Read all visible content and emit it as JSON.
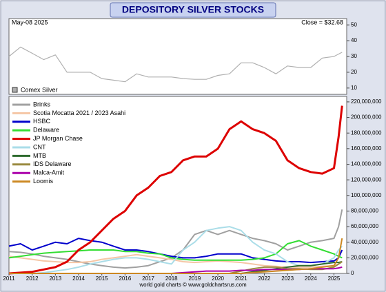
{
  "chart_data": [
    {
      "type": "line",
      "title": "DEPOSITORY SILVER STOCKS",
      "date_label": "May-08 2025",
      "close_label": "Close = $32.68",
      "x": [
        2011,
        2011.5,
        2012,
        2012.5,
        2013,
        2013.5,
        2014,
        2014.5,
        2015,
        2015.5,
        2016,
        2016.5,
        2017,
        2017.5,
        2018,
        2018.5,
        2019,
        2019.5,
        2020,
        2020.5,
        2021,
        2021.5,
        2022,
        2022.5,
        2023,
        2023.5,
        2024,
        2024.5,
        2025,
        2025.35
      ],
      "xlim": [
        2011,
        2025.55
      ],
      "ylim": [
        6,
        54
      ],
      "yticks": [
        10,
        20,
        30,
        40,
        50
      ],
      "series": [
        {
          "name": "Comex Silver",
          "color": "#b0b0b0",
          "values": [
            30,
            36,
            32,
            28,
            31,
            20,
            20,
            20,
            16,
            15,
            14,
            19,
            17,
            17,
            17,
            16,
            15.5,
            15.5,
            18,
            19,
            26,
            26,
            23,
            19,
            24,
            23,
            23,
            29,
            30,
            32.68
          ]
        }
      ]
    },
    {
      "type": "line",
      "credit": "world gold charts © www.goldchartsrus.com",
      "x": [
        2011,
        2011.5,
        2012,
        2012.5,
        2013,
        2013.5,
        2014,
        2014.5,
        2015,
        2015.5,
        2016,
        2016.5,
        2017,
        2017.5,
        2018,
        2018.5,
        2019,
        2019.5,
        2020,
        2020.5,
        2021,
        2021.5,
        2022,
        2022.5,
        2023,
        2023.5,
        2024,
        2024.5,
        2025,
        2025.2,
        2025.35
      ],
      "xlim": [
        2011,
        2025.55
      ],
      "xticks": [
        2011,
        2012,
        2013,
        2014,
        2015,
        2016,
        2017,
        2018,
        2019,
        2020,
        2021,
        2022,
        2023,
        2024,
        2025
      ],
      "ylim": [
        0,
        227000000
      ],
      "yticks": [
        0,
        {
          "value": 20000000,
          "label": "20,000,000"
        },
        {
          "value": 40000000,
          "label": "40,000,000"
        },
        {
          "value": 60000000,
          "label": "60,000,000"
        },
        {
          "value": 80000000,
          "label": "80,000,000"
        },
        {
          "value": 100000000,
          "label": "100,000,000"
        },
        {
          "value": 120000000,
          "label": "120,000,000"
        },
        {
          "value": 140000000,
          "label": "140,000,000"
        },
        {
          "value": 160000000,
          "label": "160,000,000"
        },
        {
          "value": 180000000,
          "label": "180,000,000"
        },
        {
          "value": 200000000,
          "label": "200,000,000"
        },
        {
          "value": 220000000,
          "label": "220,000,000"
        }
      ],
      "series": [
        {
          "name": "Brinks",
          "color": "#a0a0a0",
          "values": [
            28000000.0,
            27000000.0,
            25000000.0,
            22000000.0,
            20000000.0,
            18000000.0,
            15000000.0,
            12000000.0,
            10000000.0,
            8000000.0,
            7000000.0,
            8000000.0,
            10000000.0,
            15000000.0,
            20000000.0,
            30000000.0,
            50000000.0,
            55000000.0,
            50000000.0,
            55000000.0,
            50000000.0,
            45000000.0,
            42000000.0,
            38000000.0,
            30000000.0,
            35000000.0,
            40000000.0,
            42000000.0,
            45000000.0,
            60000000.0,
            82000000.0
          ]
        },
        {
          "name": "Scotia Mocatta 2021 / 2023 Asahi",
          "color": "#f5c6a5",
          "values": [
            22000000.0,
            20000000.0,
            18000000.0,
            16000000.0,
            15000000.0,
            14000000.0,
            14000000.0,
            15000000.0,
            18000000.0,
            20000000.0,
            22000000.0,
            24000000.0,
            22000000.0,
            20000000.0,
            18000000.0,
            15000000.0,
            14000000.0,
            15000000.0,
            16000000.0,
            15000000.0,
            14000000.0,
            12000000.0,
            10000000.0,
            9000000.0,
            8000000.0,
            8000000.0,
            8000000.0,
            9000000.0,
            10000000.0,
            12000000.0,
            15000000.0
          ]
        },
        {
          "name": "HSBC",
          "color": "#0000cc",
          "values": [
            35000000.0,
            38000000.0,
            30000000.0,
            35000000.0,
            40000000.0,
            38000000.0,
            45000000.0,
            42000000.0,
            40000000.0,
            35000000.0,
            30000000.0,
            30000000.0,
            28000000.0,
            25000000.0,
            22000000.0,
            20000000.0,
            20000000.0,
            22000000.0,
            25000000.0,
            25000000.0,
            25000000.0,
            20000000.0,
            18000000.0,
            16000000.0,
            15000000.0,
            15000000.0,
            14000000.0,
            15000000.0,
            16000000.0,
            20000000.0,
            30000000.0
          ]
        },
        {
          "name": "Delaware",
          "color": "#33dd33",
          "values": [
            20000000.0,
            22000000.0,
            24000000.0,
            26000000.0,
            27000000.0,
            28000000.0,
            29000000.0,
            30000000.0,
            30000000.0,
            30000000.0,
            28000000.0,
            28000000.0,
            26000000.0,
            25000000.0,
            20000000.0,
            18000000.0,
            17000000.0,
            17000000.0,
            17000000.0,
            17000000.0,
            17000000.0,
            18000000.0,
            20000000.0,
            25000000.0,
            38000000.0,
            42000000.0,
            35000000.0,
            30000000.0,
            25000000.0,
            22000000.0,
            20000000.0
          ]
        },
        {
          "name": "JP Morgan Chase",
          "color": "#dd0000",
          "values": [
            0,
            1000000.0,
            2000000.0,
            5000000.0,
            8000000.0,
            15000000.0,
            30000000.0,
            40000000.0,
            55000000.0,
            70000000.0,
            80000000.0,
            100000000.0,
            110000000.0,
            125000000.0,
            130000000.0,
            145000000.0,
            150000000.0,
            150000000.0,
            160000000.0,
            185000000.0,
            195000000.0,
            185000000.0,
            180000000.0,
            170000000.0,
            145000000.0,
            135000000.0,
            130000000.0,
            128000000.0,
            135000000.0,
            175000000.0,
            215000000.0
          ]
        },
        {
          "name": "CNT",
          "color": "#aadde8",
          "values": [
            0,
            0,
            0,
            1000000.0,
            3000000.0,
            5000000.0,
            8000000.0,
            12000000.0,
            15000000.0,
            18000000.0,
            20000000.0,
            20000000.0,
            18000000.0,
            15000000.0,
            12000000.0,
            30000000.0,
            40000000.0,
            55000000.0,
            58000000.0,
            60000000.0,
            55000000.0,
            40000000.0,
            30000000.0,
            25000000.0,
            15000000.0,
            10000000.0,
            10000000.0,
            12000000.0,
            20000000.0,
            30000000.0,
            35000000.0
          ]
        },
        {
          "name": "MTB",
          "color": "#2e6b2e",
          "values": [
            0,
            0,
            0,
            0,
            0,
            0,
            0,
            0,
            0,
            0,
            0,
            0,
            0,
            0,
            0,
            0,
            0,
            0,
            0,
            0,
            0,
            2000000.0,
            4000000.0,
            6000000.0,
            8000000.0,
            10000000.0,
            10000000.0,
            12000000.0,
            14000000.0,
            14000000.0,
            15000000.0
          ]
        },
        {
          "name": "IDS Delaware",
          "color": "#9a8a40",
          "values": [
            0,
            0,
            0,
            0,
            0,
            0,
            0,
            0,
            0,
            0,
            0,
            0,
            0,
            0,
            0,
            0,
            0,
            0,
            0,
            0,
            3000000.0,
            6000000.0,
            8000000.0,
            8000000.0,
            6000000.0,
            6000000.0,
            5000000.0,
            5000000.0,
            8000000.0,
            12000000.0,
            15000000.0
          ]
        },
        {
          "name": "Malca-Amit",
          "color": "#aa00aa",
          "values": [
            0,
            0,
            0,
            0,
            0,
            0,
            0,
            0,
            0,
            0,
            0,
            0,
            0,
            0,
            0,
            1000000.0,
            2000000.0,
            3000000.0,
            3000000.0,
            3000000.0,
            4000000.0,
            4000000.0,
            5000000.0,
            5000000.0,
            5000000.0,
            5000000.0,
            6000000.0,
            6000000.0,
            6000000.0,
            7000000.0,
            8000000.0
          ]
        },
        {
          "name": "Loomis",
          "color": "#cc8822",
          "values": [
            0,
            0,
            0,
            0,
            0,
            0,
            0,
            0,
            0,
            0,
            0,
            0,
            0,
            0,
            0,
            0,
            0,
            0,
            0,
            0,
            0,
            1000000.0,
            2000000.0,
            3000000.0,
            4000000.0,
            5000000.0,
            6000000.0,
            8000000.0,
            10000000.0,
            20000000.0,
            45000000.0
          ]
        }
      ]
    }
  ]
}
